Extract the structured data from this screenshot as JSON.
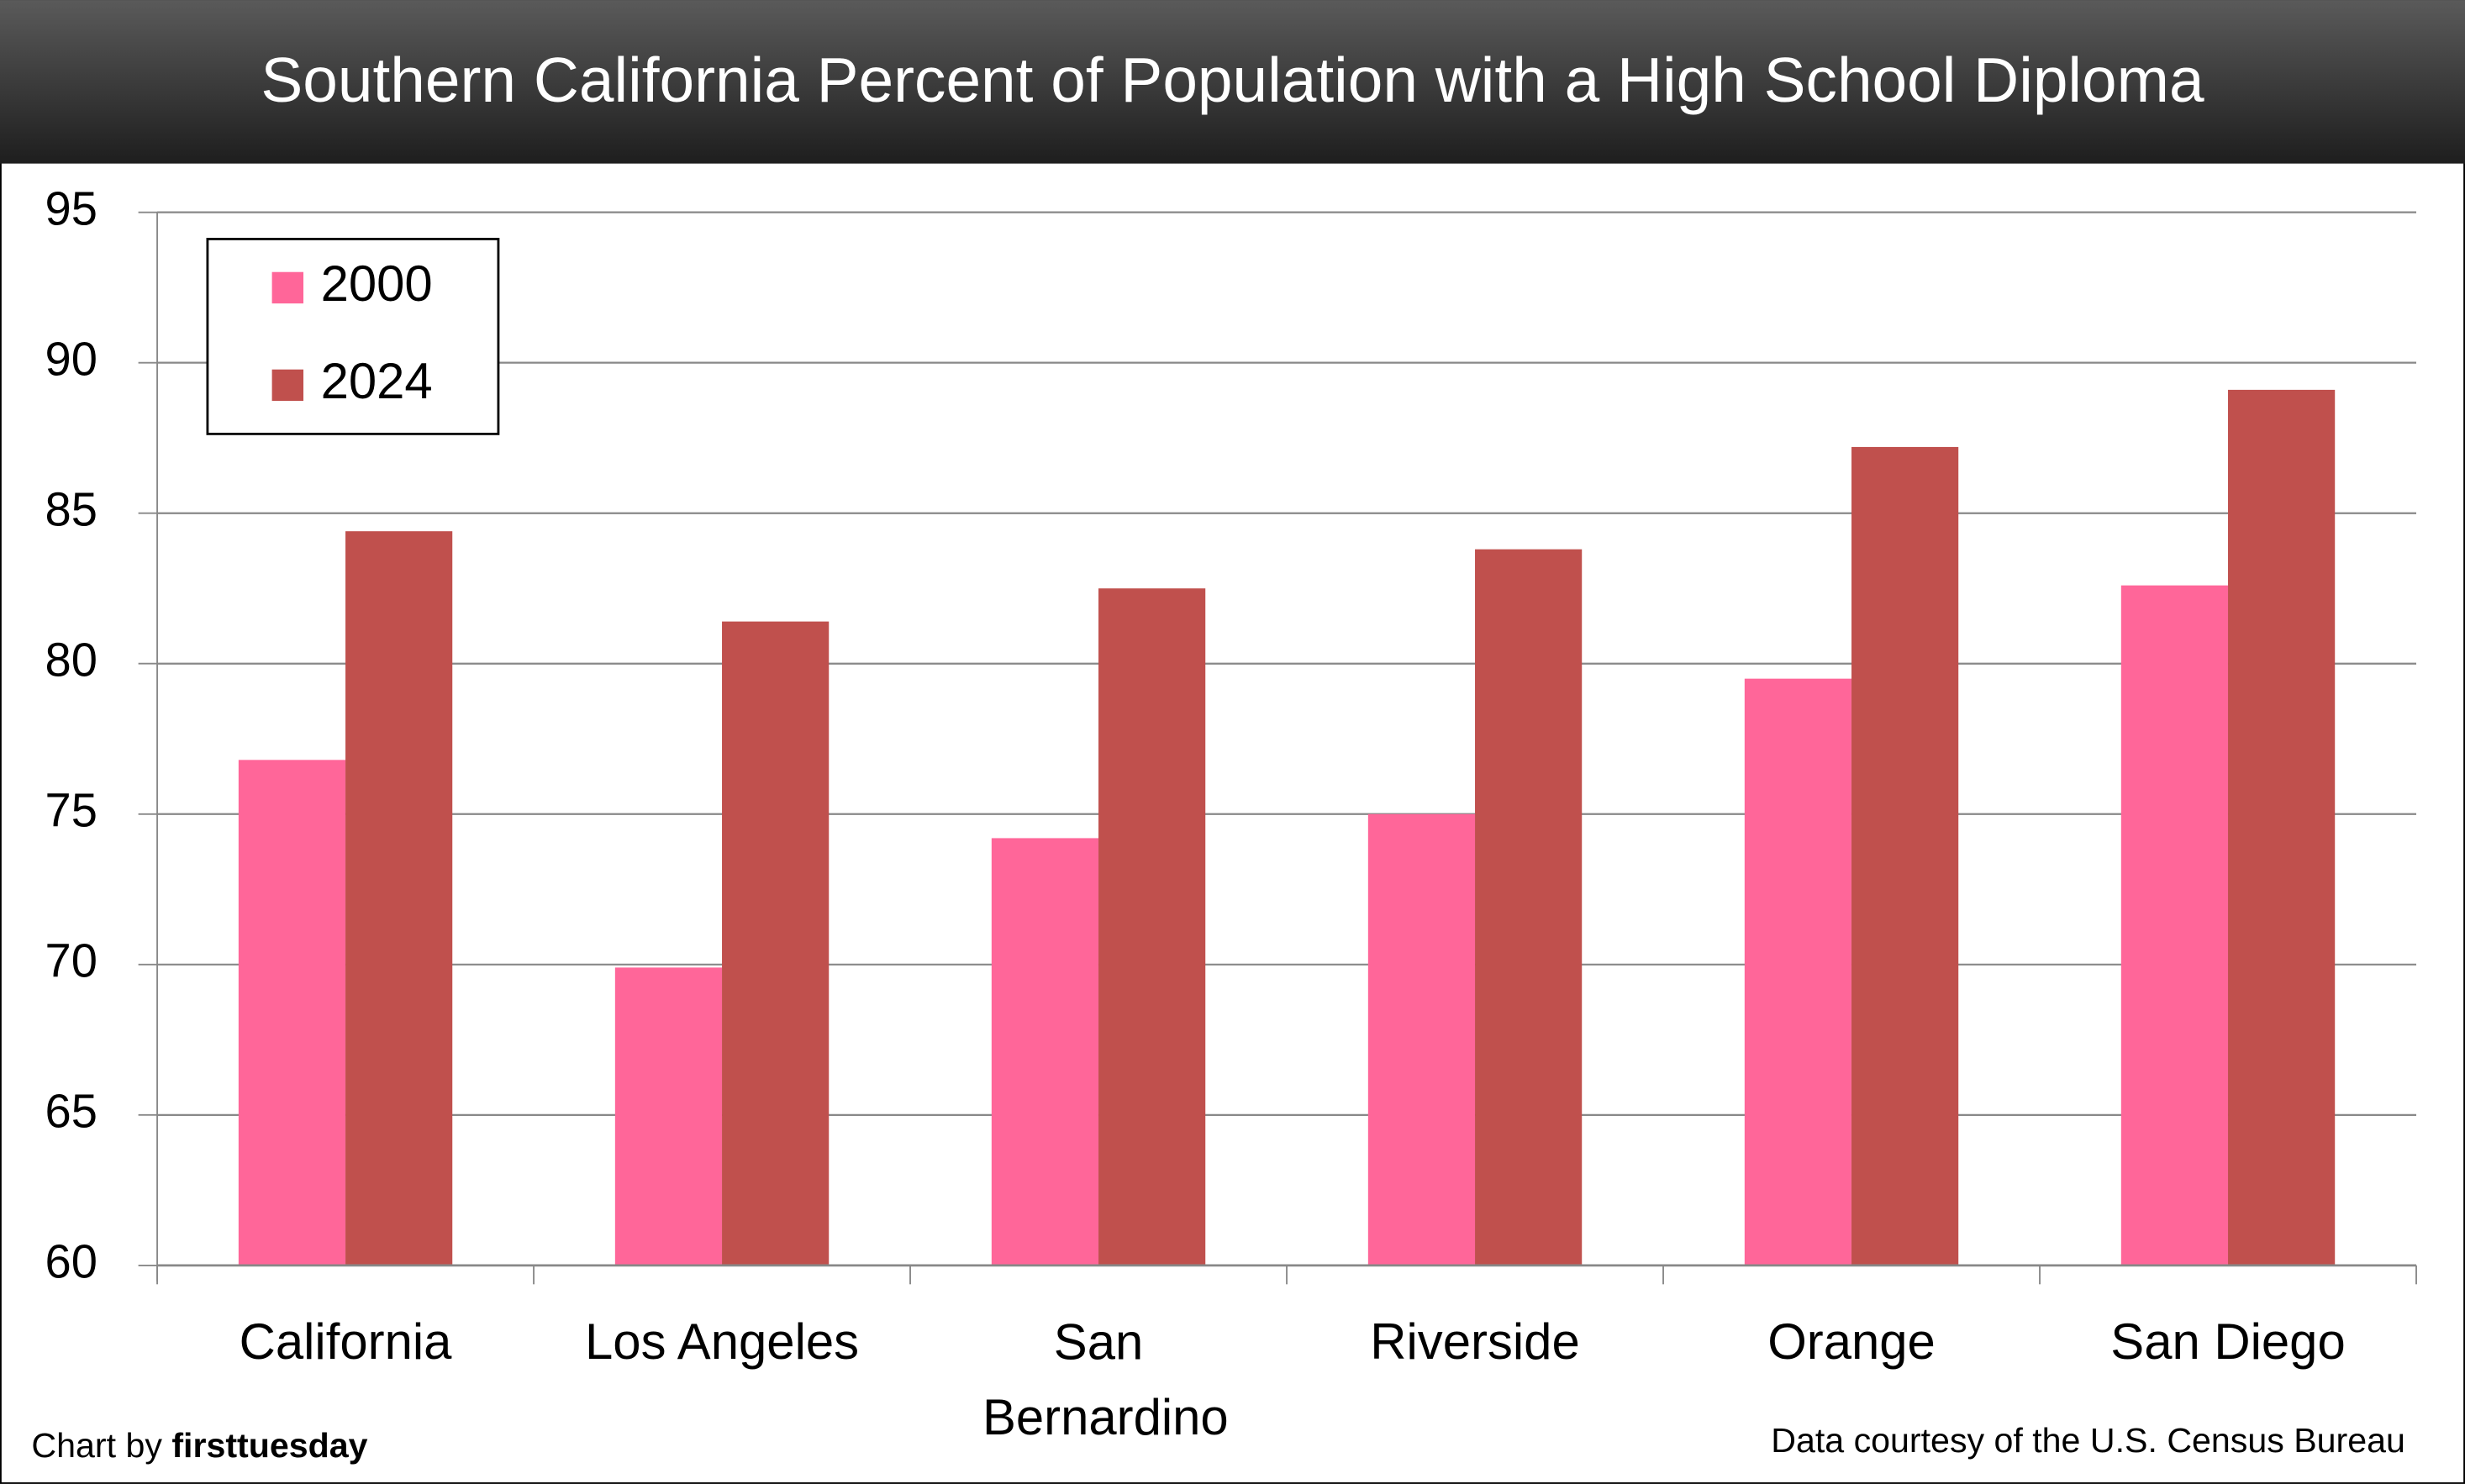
{
  "chart_data": {
    "type": "bar",
    "title": "Southern California Percent of Population with a High School Diploma",
    "categories": [
      "California",
      "Los Angeles",
      "San Bernardino",
      "Riverside",
      "Orange",
      "San Diego"
    ],
    "series": [
      {
        "name": "2000",
        "color": "#ff6699",
        "values": [
          76.8,
          69.9,
          74.2,
          75.0,
          79.5,
          82.6
        ]
      },
      {
        "name": "2024",
        "color": "#c0504d",
        "values": [
          84.4,
          81.4,
          82.5,
          83.8,
          87.2,
          89.1
        ]
      }
    ],
    "ylim": [
      60,
      95
    ],
    "yticks": [
      60,
      65,
      70,
      75,
      80,
      85,
      90,
      95
    ],
    "grid": true,
    "legend": "upper left",
    "credit_prefix": "Chart by",
    "credit_name": "firsttuesday",
    "source": "Data courtesy of the U.S. Census Bureau"
  }
}
